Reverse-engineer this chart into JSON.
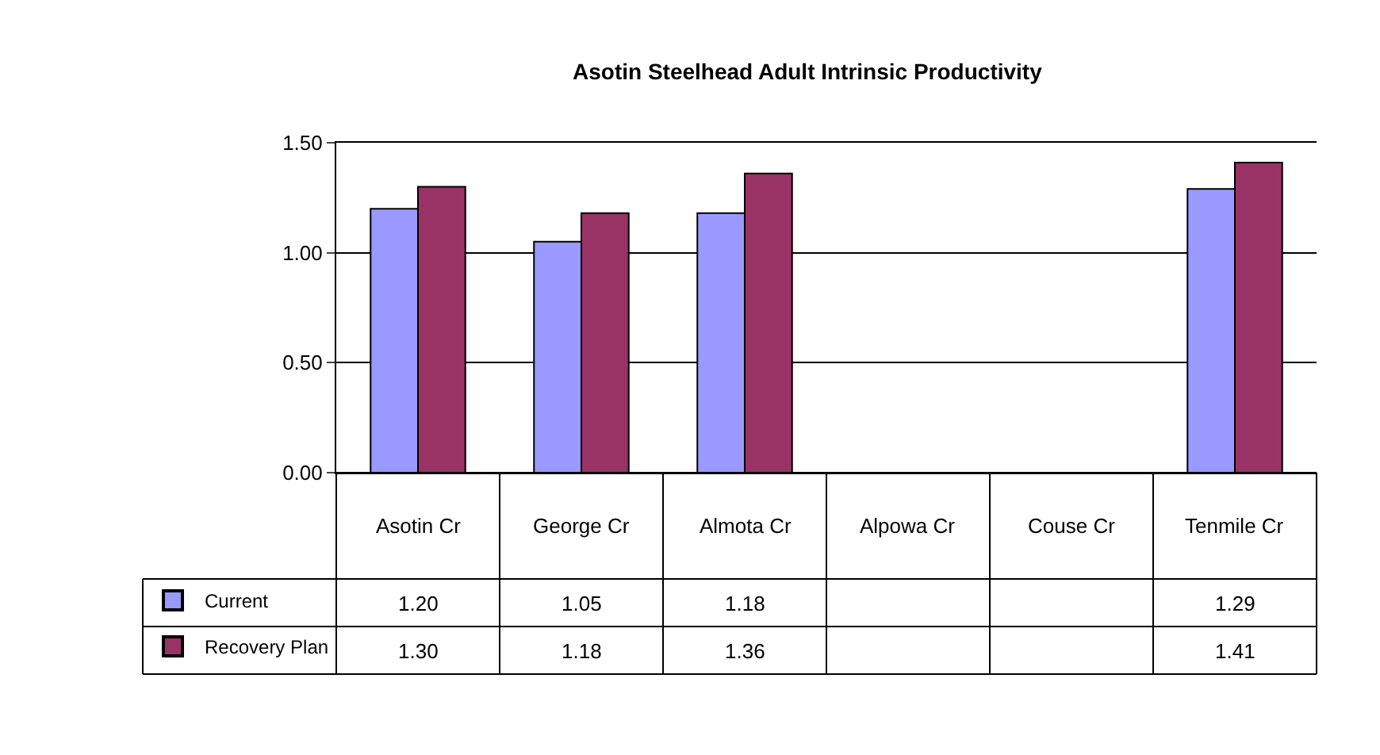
{
  "chart_data": {
    "type": "bar",
    "title": "Asotin Steelhead Adult Intrinsic Productivity",
    "categories": [
      "Asotin Cr",
      "George Cr",
      "Almota Cr",
      "Alpowa Cr",
      "Couse Cr",
      "Tenmile Cr"
    ],
    "series": [
      {
        "name": "Current",
        "color": "#9999ff",
        "values": [
          1.2,
          1.05,
          1.18,
          null,
          null,
          1.29
        ],
        "value_labels": [
          "1.20",
          "1.05",
          "1.18",
          null,
          null,
          "1.29"
        ]
      },
      {
        "name": "Recovery Plan",
        "color": "#993366",
        "values": [
          1.3,
          1.18,
          1.36,
          null,
          null,
          1.41
        ],
        "value_labels": [
          "1.30",
          "1.18",
          "1.36",
          null,
          null,
          "1.41"
        ]
      }
    ],
    "ylim": [
      0,
      1.5
    ],
    "yticks": [
      {
        "value": 0,
        "label": "0.00"
      },
      {
        "value": 0.5,
        "label": "0.50"
      },
      {
        "value": 1,
        "label": "1.00"
      },
      {
        "value": 1.5,
        "label": "1.50"
      }
    ],
    "grid": "y",
    "legend": "bottom left"
  }
}
